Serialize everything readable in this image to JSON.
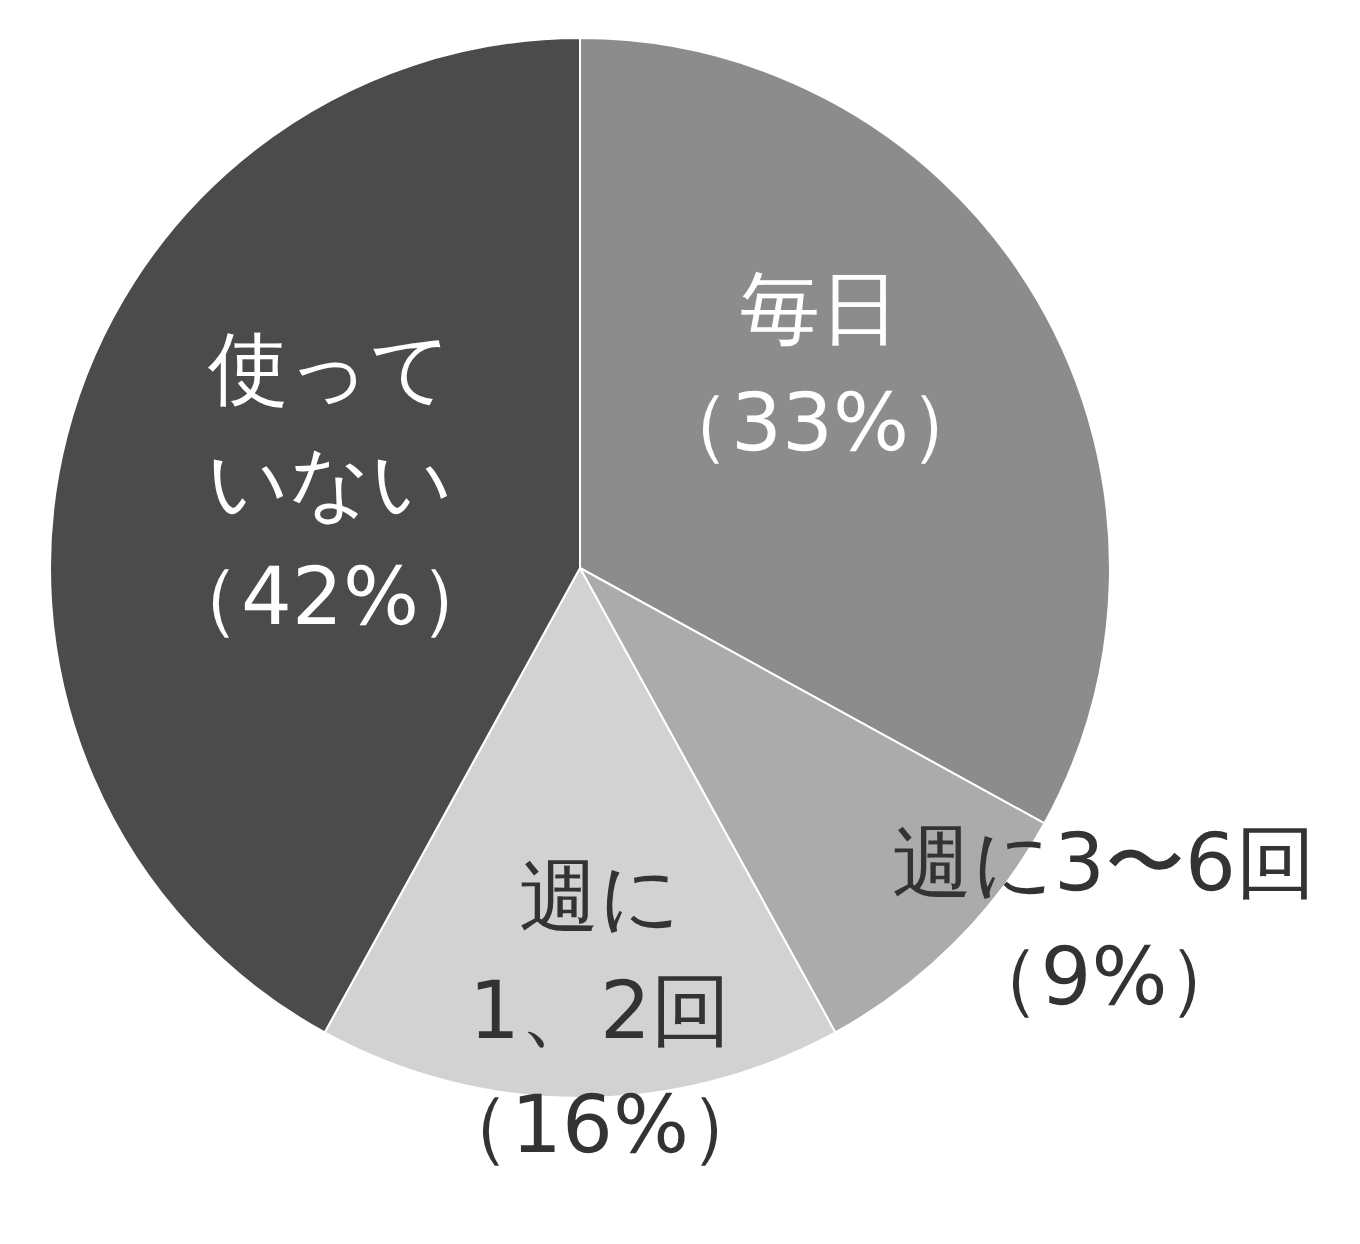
{
  "chart_data": {
    "type": "pie",
    "categories": [
      "毎日",
      "週に3〜6回",
      "週に1、2回",
      "使っていない"
    ],
    "values": [
      33,
      9,
      16,
      42
    ],
    "colors": [
      "#8c8c8c",
      "#ababab",
      "#d2d2d2",
      "#4b4b4b"
    ],
    "value_labels": [
      "（33%）",
      "（9%）",
      "（16%）",
      "（42%）"
    ]
  }
}
